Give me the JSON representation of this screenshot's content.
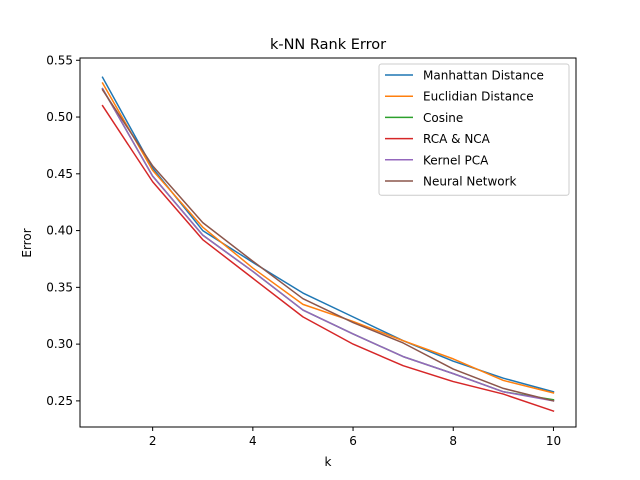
{
  "chart_data": {
    "type": "line",
    "title": "k-NN Rank Error",
    "xlabel": "k",
    "ylabel": "Error",
    "xlim": [
      0.55,
      10.45
    ],
    "ylim": [
      0.227,
      0.552
    ],
    "xticks": [
      2,
      4,
      6,
      8,
      10
    ],
    "yticks": [
      0.25,
      0.3,
      0.35,
      0.4,
      0.45,
      0.5,
      0.55
    ],
    "ytick_labels": [
      "0.25",
      "0.30",
      "0.35",
      "0.40",
      "0.45",
      "0.50",
      "0.55"
    ],
    "grid": false,
    "legend_position": "top-right",
    "x": [
      1,
      2,
      3,
      4,
      5,
      6,
      7,
      8,
      9,
      10
    ],
    "series": [
      {
        "name": "Manhattan Distance",
        "color": "#1f77b4",
        "values": [
          0.535,
          0.455,
          0.4,
          0.372,
          0.345,
          0.324,
          0.303,
          0.285,
          0.27,
          0.258
        ]
      },
      {
        "name": "Euclidian Distance",
        "color": "#ff7f0e",
        "values": [
          0.53,
          0.453,
          0.403,
          0.367,
          0.335,
          0.32,
          0.303,
          0.287,
          0.268,
          0.257
        ]
      },
      {
        "name": "Cosine",
        "color": "#2ca02c",
        "values": [
          0.525,
          0.448,
          0.396,
          0.364,
          0.33,
          0.309,
          0.289,
          0.274,
          0.258,
          0.251
        ]
      },
      {
        "name": "RCA & NCA",
        "color": "#d62728",
        "values": [
          0.51,
          0.443,
          0.392,
          0.358,
          0.324,
          0.3,
          0.281,
          0.267,
          0.256,
          0.241
        ]
      },
      {
        "name": "Kernel PCA",
        "color": "#9467bd",
        "values": [
          0.525,
          0.448,
          0.396,
          0.364,
          0.33,
          0.309,
          0.289,
          0.274,
          0.258,
          0.25
        ]
      },
      {
        "name": "Neural Network",
        "color": "#8c564b",
        "values": [
          0.524,
          0.457,
          0.407,
          0.373,
          0.34,
          0.319,
          0.301,
          0.278,
          0.261,
          0.25
        ]
      }
    ]
  }
}
